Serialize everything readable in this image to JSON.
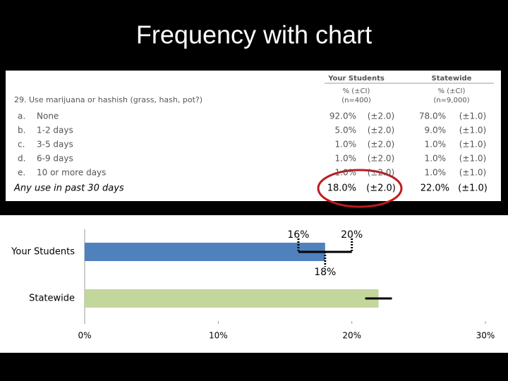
{
  "title": "Frequency with chart",
  "table": {
    "question": "29.  Use marijuana or hashish (grass, hash, pot?)",
    "headers": [
      "Your Students",
      "Statewide"
    ],
    "subheaders": [
      "% (±CI)",
      "% (±CI)"
    ],
    "sizes": [
      "(n=400)",
      "(n=9,000)"
    ],
    "rows": [
      [
        "a.",
        "None",
        "92.0%",
        "(±2.0)",
        "78.0%",
        "(±1.0)"
      ],
      [
        "b.",
        "1-2 days",
        "5.0%",
        "(±2.0)",
        "9.0%",
        "(±1.0)"
      ],
      [
        "c.",
        "3-5 days",
        "1.0%",
        "(±2.0)",
        "1.0%",
        "(±1.0)"
      ],
      [
        "d.",
        "6-9 days",
        "1.0%",
        "(±2.0)",
        "1.0%",
        "(±1.0)"
      ],
      [
        "e.",
        "10 or more days",
        "1.0%",
        "(±2.0)",
        "1.0%",
        "(±1.0)"
      ]
    ],
    "summary": [
      "Any use in past 30 days",
      "18.0%",
      "(±2.0)",
      "22.0%",
      "(±1.0)"
    ]
  },
  "chart_data": {
    "type": "hbar",
    "categories": [
      "Your Students",
      "Statewide"
    ],
    "values": [
      18,
      22
    ],
    "errors": [
      2,
      1
    ],
    "colors": [
      "#4f81bd",
      "#c3d69b"
    ],
    "xlim": [
      0,
      30
    ],
    "xticks": [
      {
        "value": 0,
        "label": "0%"
      },
      {
        "value": 10,
        "label": "10%"
      },
      {
        "value": 20,
        "label": "20%"
      },
      {
        "value": 30,
        "label": "30%"
      }
    ],
    "annotations": [
      {
        "value": 16,
        "label": "16%"
      },
      {
        "value": 20,
        "label": "20%"
      },
      {
        "value": 18,
        "label": "18%"
      }
    ]
  }
}
